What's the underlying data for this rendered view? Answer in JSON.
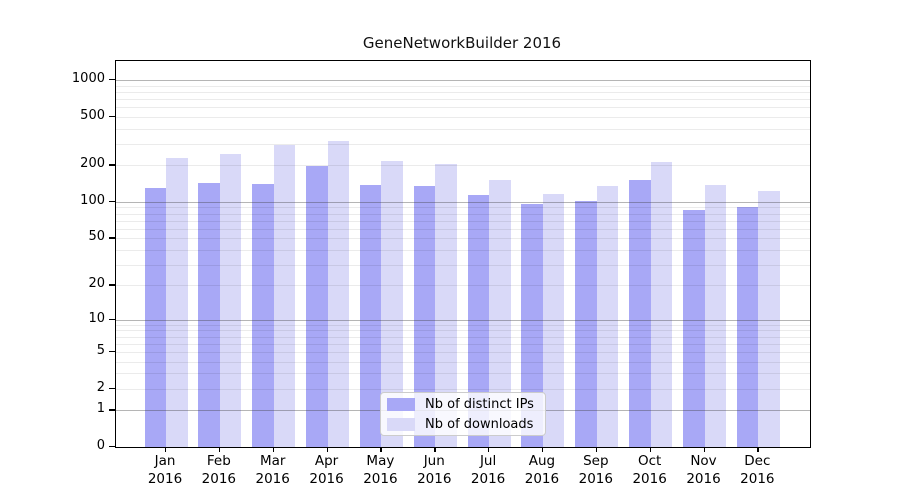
{
  "chart_data": {
    "type": "bar",
    "title": "GeneNetworkBuilder 2016",
    "categories": [
      "Jan",
      "Feb",
      "Mar",
      "Apr",
      "May",
      "Jun",
      "Jul",
      "Aug",
      "Sep",
      "Oct",
      "Nov",
      "Dec"
    ],
    "x_sublabel": "2016",
    "series": [
      {
        "name": "Nb of distinct IPs",
        "color": "#a8a8f6",
        "values": [
          130,
          143,
          141,
          196,
          138,
          135,
          114,
          96,
          101,
          150,
          86,
          91
        ]
      },
      {
        "name": "Nb of downloads",
        "color": "#d9d9f8",
        "values": [
          230,
          248,
          295,
          315,
          218,
          206,
          152,
          116,
          134,
          212,
          139,
          124
        ]
      }
    ],
    "xlabel": "",
    "ylabel": "",
    "yscale": "log1p",
    "ylim": [
      0,
      1430
    ],
    "yticks": [
      0,
      1,
      2,
      5,
      10,
      20,
      50,
      100,
      200,
      500,
      1000
    ],
    "grid": {
      "on": true,
      "major_values": [
        1,
        10,
        100,
        1000
      ],
      "minor_values": [
        2,
        3,
        4,
        5,
        6,
        7,
        8,
        9,
        20,
        30,
        40,
        50,
        60,
        70,
        80,
        90,
        200,
        300,
        400,
        500,
        600,
        700,
        800,
        900
      ]
    },
    "legend_position": "inside-bottom-center"
  },
  "colors": {
    "background": "#ffffff",
    "axis": "#000000",
    "major_grid": "rgba(60,60,60,0.38)",
    "minor_grid": "rgba(0,0,0,0.08)",
    "text": "#000000"
  }
}
